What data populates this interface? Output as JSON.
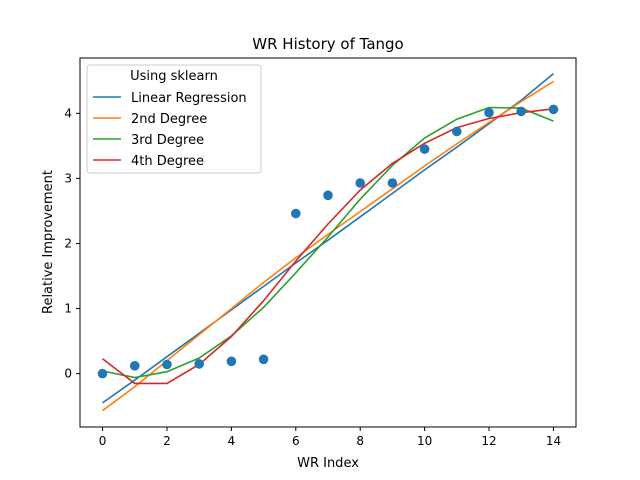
{
  "chart_data": {
    "type": "scatter",
    "title": "WR History of Tango",
    "xlabel": "WR Index",
    "ylabel": "Relative Improvement",
    "xlim": [
      -0.7,
      14.7
    ],
    "ylim": [
      -0.82,
      4.85
    ],
    "xticks": [
      0,
      2,
      4,
      6,
      8,
      10,
      12,
      14
    ],
    "yticks": [
      0,
      1,
      2,
      3,
      4
    ],
    "grid": false,
    "legend": {
      "title": "Using sklearn",
      "placement": "top-left"
    },
    "points": {
      "color": "#1f77b4",
      "x": [
        0,
        1,
        2,
        3,
        4,
        5,
        6,
        7,
        8,
        9,
        10,
        11,
        12,
        13,
        14
      ],
      "y": [
        0.0,
        0.12,
        0.14,
        0.15,
        0.19,
        0.22,
        2.46,
        2.74,
        2.93,
        2.93,
        3.45,
        3.72,
        4.01,
        4.03,
        4.06
      ]
    },
    "x": [
      0,
      1,
      2,
      3,
      4,
      5,
      6,
      7,
      8,
      9,
      10,
      11,
      12,
      13,
      14
    ],
    "series": [
      {
        "name": "Linear Regression",
        "color": "#1f77b4",
        "values": [
          -0.45,
          -0.1,
          0.26,
          0.62,
          0.98,
          1.34,
          1.7,
          2.05,
          2.41,
          2.77,
          3.13,
          3.48,
          3.84,
          4.2,
          4.61
        ]
      },
      {
        "name": "2nd Degree",
        "color": "#ff7f0e",
        "values": [
          -0.57,
          -0.2,
          0.2,
          0.6,
          1.0,
          1.4,
          1.78,
          2.14,
          2.49,
          2.84,
          3.19,
          3.53,
          3.86,
          4.18,
          4.49
        ]
      },
      {
        "name": "3rd Degree",
        "color": "#2ca02c",
        "values": [
          0.04,
          -0.06,
          0.03,
          0.24,
          0.58,
          1.02,
          1.55,
          2.1,
          2.68,
          3.2,
          3.62,
          3.91,
          4.09,
          4.08,
          3.88
        ]
      },
      {
        "name": "4th Degree",
        "color": "#d62728",
        "values": [
          0.23,
          -0.15,
          -0.15,
          0.14,
          0.57,
          1.12,
          1.73,
          2.3,
          2.82,
          3.23,
          3.54,
          3.78,
          3.92,
          4.01,
          4.07
        ]
      }
    ]
  }
}
